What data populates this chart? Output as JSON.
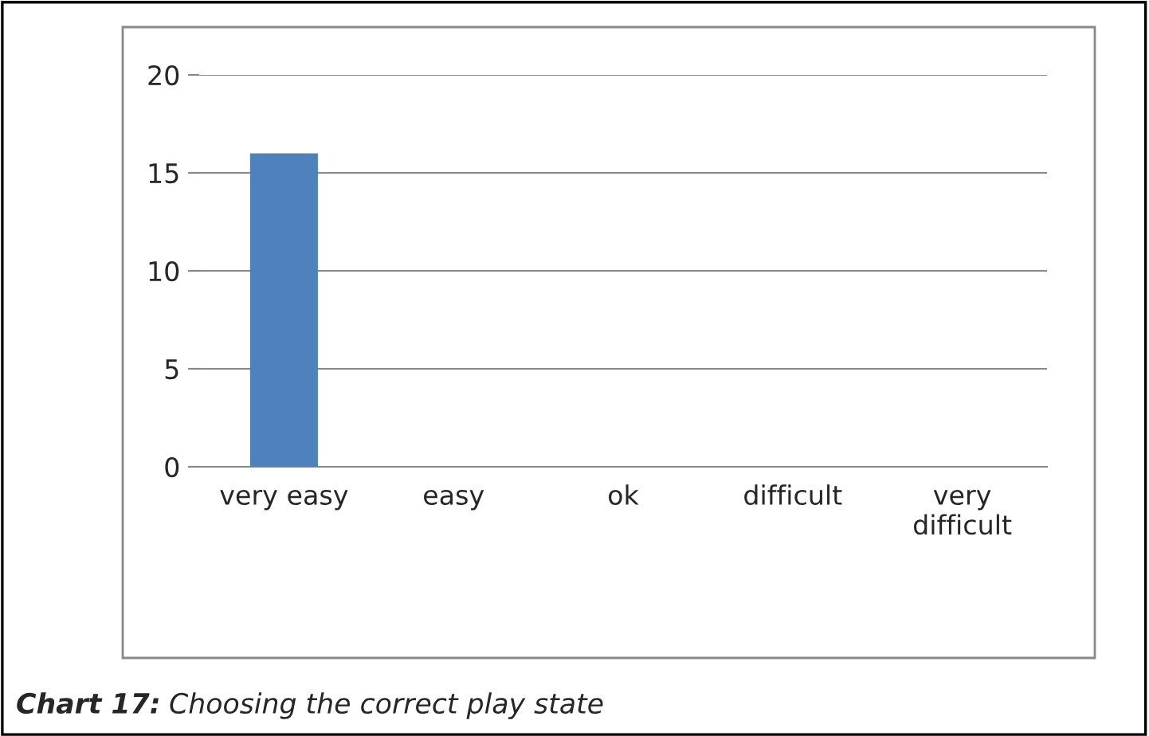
{
  "chart_data": {
    "type": "bar",
    "categories": [
      "very easy",
      "easy",
      "ok",
      "difficult",
      "very\ndifficult"
    ],
    "values": [
      16,
      0,
      0,
      0,
      0
    ],
    "color": "#4f81bd",
    "ylim": [
      0,
      20
    ],
    "yticks": [
      0,
      5,
      10,
      15,
      20
    ],
    "grid": "y",
    "legend": false,
    "annotations": [
      "Chart 17:",
      "Choosing the correct play state"
    ]
  }
}
